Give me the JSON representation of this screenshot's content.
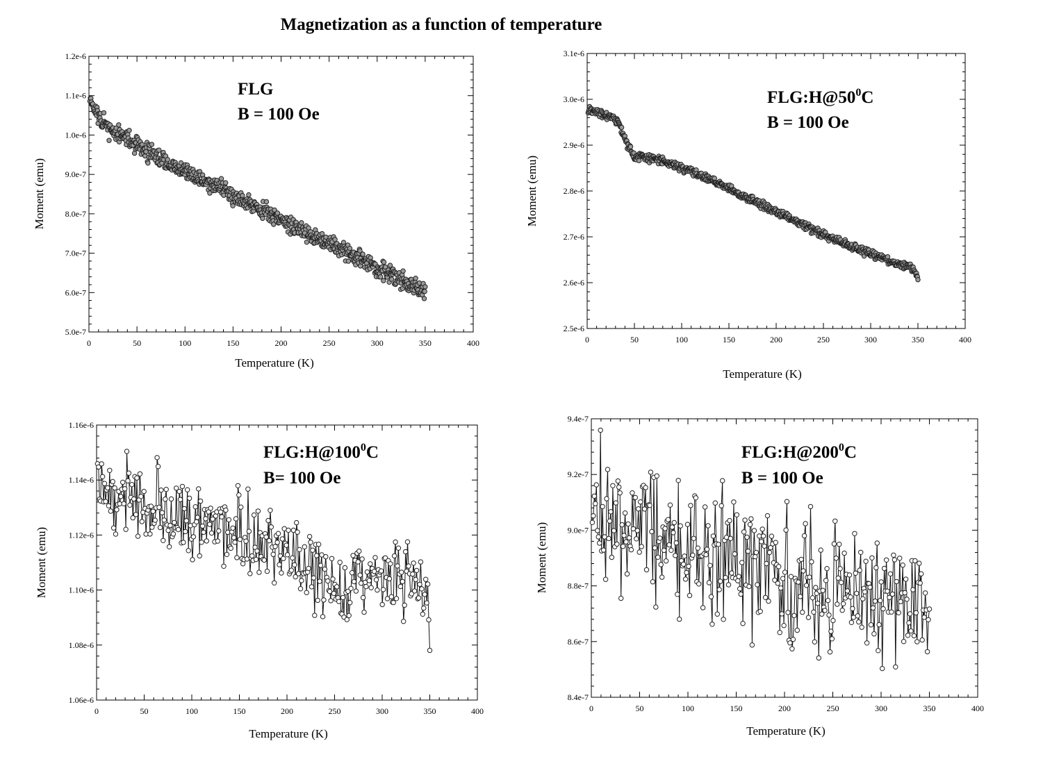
{
  "title": "Magnetization as a function of temperature",
  "chart_data": [
    {
      "type": "scatter",
      "panel": "top-left",
      "xlabel": "Temperature (K)",
      "ylabel": "Moment (emu)",
      "xlim": [
        0,
        400
      ],
      "ylim": [
        5e-07,
        1.2e-06
      ],
      "xticks": [
        0,
        50,
        100,
        150,
        200,
        250,
        300,
        350,
        400
      ],
      "xtick_labels": [
        "0",
        "50",
        "100",
        "150",
        "200",
        "250",
        "300",
        "350",
        "400"
      ],
      "yticks": [
        5e-07,
        6e-07,
        7e-07,
        8e-07,
        9e-07,
        1e-06,
        1.1e-06,
        1.2e-06
      ],
      "ytick_labels": [
        "5.0e-7",
        "6.0e-7",
        "7.0e-7",
        "8.0e-7",
        "9.0e-7",
        "1.0e-6",
        "1.1e-6",
        "1.2e-6"
      ],
      "annotation": [
        "FLG",
        "B = 100 Oe"
      ],
      "connected": false,
      "grid": false,
      "series": [
        {
          "x": [
            0,
            5,
            10,
            20,
            30,
            40,
            50,
            60,
            70,
            80,
            90,
            100,
            110,
            120,
            130,
            140,
            150,
            160,
            170,
            180,
            190,
            200,
            210,
            220,
            230,
            240,
            250,
            260,
            270,
            280,
            290,
            300,
            310,
            320,
            330,
            340,
            350
          ],
          "y": [
            1.11e-06,
            1.07e-06,
            1.04e-06,
            1.02e-06,
            1e-06,
            9.9e-07,
            9.75e-07,
            9.6e-07,
            9.45e-07,
            9.3e-07,
            9.15e-07,
            9.05e-07,
            8.95e-07,
            8.85e-07,
            8.72e-07,
            8.6e-07,
            8.48e-07,
            8.37e-07,
            8.25e-07,
            8.12e-07,
            7.98e-07,
            7.85e-07,
            7.72e-07,
            7.6e-07,
            7.48e-07,
            7.37e-07,
            7.25e-07,
            7.13e-07,
            7e-07,
            6.88e-07,
            6.75e-07,
            6.63e-07,
            6.5e-07,
            6.38e-07,
            6.25e-07,
            6.13e-07,
            6e-07
          ]
        }
      ]
    },
    {
      "type": "scatter",
      "panel": "top-right",
      "xlabel": "Temperature (K)",
      "ylabel": "Moment (emu)",
      "xlim": [
        0,
        400
      ],
      "ylim": [
        2.5e-06,
        3.1e-06
      ],
      "xticks": [
        0,
        50,
        100,
        150,
        200,
        250,
        300,
        350,
        400
      ],
      "xtick_labels": [
        "0",
        "50",
        "100",
        "150",
        "200",
        "250",
        "300",
        "350",
        "400"
      ],
      "yticks": [
        2.5e-06,
        2.6e-06,
        2.7e-06,
        2.8e-06,
        2.9e-06,
        3e-06,
        3.1e-06
      ],
      "ytick_labels": [
        "2.5e-6",
        "2.6e-6",
        "2.7e-6",
        "2.8e-6",
        "2.9e-6",
        "3.0e-6",
        "3.1e-6"
      ],
      "annotation": [
        "FLG:H@50",
        "0",
        "C",
        "B = 100 Oe"
      ],
      "connected": false,
      "grid": false,
      "series": [
        {
          "x": [
            0,
            10,
            20,
            30,
            35,
            40,
            45,
            50,
            60,
            70,
            80,
            90,
            100,
            120,
            140,
            160,
            180,
            200,
            220,
            240,
            260,
            280,
            300,
            320,
            330,
            340,
            345,
            350
          ],
          "y": [
            2.98e-06,
            2.972e-06,
            2.965e-06,
            2.955e-06,
            2.94e-06,
            2.915e-06,
            2.89e-06,
            2.875e-06,
            2.875e-06,
            2.87e-06,
            2.865e-06,
            2.858e-06,
            2.85e-06,
            2.835e-06,
            2.815e-06,
            2.795e-06,
            2.775e-06,
            2.755e-06,
            2.735e-06,
            2.715e-06,
            2.695e-06,
            2.678e-06,
            2.662e-06,
            2.647e-06,
            2.64e-06,
            2.635e-06,
            2.625e-06,
            2.612e-06
          ]
        }
      ]
    },
    {
      "type": "line",
      "panel": "bottom-left",
      "xlabel": "Temperature (K)",
      "ylabel": "Moment (emu)",
      "xlim": [
        0,
        400
      ],
      "ylim": [
        1.06e-06,
        1.16e-06
      ],
      "xticks": [
        0,
        50,
        100,
        150,
        200,
        250,
        300,
        350,
        400
      ],
      "xtick_labels": [
        "0",
        "50",
        "100",
        "150",
        "200",
        "250",
        "300",
        "350",
        "400"
      ],
      "yticks": [
        1.06e-06,
        1.08e-06,
        1.1e-06,
        1.12e-06,
        1.14e-06,
        1.16e-06
      ],
      "ytick_labels": [
        "1.06e-6",
        "1.08e-6",
        "1.10e-6",
        "1.12e-6",
        "1.14e-6",
        "1.16e-6"
      ],
      "annotation": [
        "FLG:H@100",
        "0",
        "C",
        "B= 100 Oe"
      ],
      "connected": true,
      "grid": false,
      "series": [
        {
          "x": [
            0,
            10,
            20,
            30,
            40,
            50,
            60,
            70,
            80,
            90,
            100,
            110,
            120,
            130,
            140,
            150,
            160,
            170,
            180,
            190,
            200,
            210,
            220,
            230,
            240,
            250,
            260,
            270,
            275,
            280,
            290,
            300,
            310,
            320,
            330,
            340,
            345,
            350
          ],
          "y": [
            1.142e-06,
            1.136e-06,
            1.135e-06,
            1.134e-06,
            1.132e-06,
            1.131e-06,
            1.13e-06,
            1.129e-06,
            1.127e-06,
            1.126e-06,
            1.125e-06,
            1.124e-06,
            1.124e-06,
            1.123e-06,
            1.122e-06,
            1.121e-06,
            1.12e-06,
            1.118e-06,
            1.116e-06,
            1.114e-06,
            1.112e-06,
            1.11e-06,
            1.108e-06,
            1.106e-06,
            1.104e-06,
            1.102e-06,
            1.1e-06,
            1.104e-06,
            1.114e-06,
            1.108e-06,
            1.106e-06,
            1.104e-06,
            1.103e-06,
            1.102e-06,
            1.101e-06,
            1.099e-06,
            1.094e-06,
            1.088e-06
          ]
        }
      ]
    },
    {
      "type": "line",
      "panel": "bottom-right",
      "xlabel": "Temperature (K)",
      "ylabel": "Moment (emu)",
      "xlim": [
        0,
        400
      ],
      "ylim": [
        8.4e-07,
        9.4e-07
      ],
      "xticks": [
        0,
        50,
        100,
        150,
        200,
        250,
        300,
        350,
        400
      ],
      "xtick_labels": [
        "0",
        "50",
        "100",
        "150",
        "200",
        "250",
        "300",
        "350",
        "400"
      ],
      "yticks": [
        8.4e-07,
        8.6e-07,
        8.8e-07,
        9e-07,
        9.2e-07,
        9.4e-07
      ],
      "ytick_labels": [
        "8.4e-7",
        "8.6e-7",
        "8.8e-7",
        "9.0e-7",
        "9.2e-7",
        "9.4e-7"
      ],
      "annotation": [
        "FLG:H@200",
        "0",
        "C",
        "B = 100 Oe"
      ],
      "connected": true,
      "grid": false,
      "series": [
        {
          "x": [
            0,
            10,
            20,
            30,
            40,
            50,
            60,
            70,
            80,
            90,
            100,
            110,
            120,
            130,
            140,
            150,
            160,
            170,
            180,
            190,
            200,
            210,
            220,
            230,
            240,
            250,
            260,
            270,
            280,
            290,
            300,
            310,
            320,
            330,
            340,
            350
          ],
          "y": [
            9.15e-07,
            9.08e-07,
            9.03e-07,
            9.02e-07,
            9e-07,
            8.99e-07,
            8.99e-07,
            8.97e-07,
            8.96e-07,
            8.95e-07,
            8.94e-07,
            8.93e-07,
            8.92e-07,
            8.91e-07,
            8.9e-07,
            8.89e-07,
            8.88e-07,
            8.87e-07,
            8.86e-07,
            8.85e-07,
            8.84e-07,
            8.83e-07,
            8.82e-07,
            8.81e-07,
            8.8e-07,
            8.79e-07,
            8.78e-07,
            8.77e-07,
            8.76e-07,
            8.76e-07,
            8.75e-07,
            8.75e-07,
            8.75e-07,
            8.75e-07,
            8.75e-07,
            8.76e-07
          ]
        }
      ]
    }
  ]
}
